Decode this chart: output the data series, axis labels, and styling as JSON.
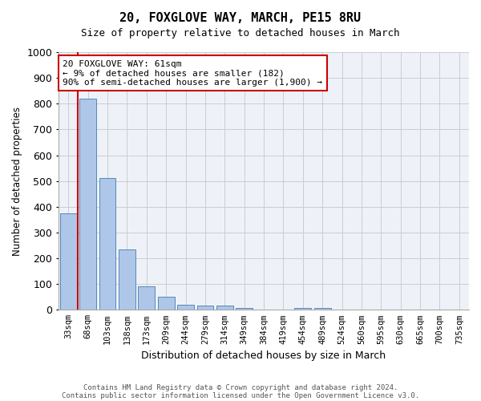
{
  "title1": "20, FOXGLOVE WAY, MARCH, PE15 8RU",
  "title2": "Size of property relative to detached houses in March",
  "xlabel": "Distribution of detached houses by size in March",
  "ylabel": "Number of detached properties",
  "bar_labels": [
    "33sqm",
    "68sqm",
    "103sqm",
    "138sqm",
    "173sqm",
    "209sqm",
    "244sqm",
    "279sqm",
    "314sqm",
    "349sqm",
    "384sqm",
    "419sqm",
    "454sqm",
    "489sqm",
    "524sqm",
    "560sqm",
    "595sqm",
    "630sqm",
    "665sqm",
    "700sqm",
    "735sqm"
  ],
  "bar_values": [
    375,
    820,
    510,
    235,
    90,
    50,
    20,
    15,
    15,
    8,
    0,
    0,
    8,
    8,
    0,
    0,
    0,
    0,
    0,
    0,
    0
  ],
  "bar_color": "#aec6e8",
  "bar_edge_color": "#5588bb",
  "ylim": [
    0,
    1000
  ],
  "yticks": [
    0,
    100,
    200,
    300,
    400,
    500,
    600,
    700,
    800,
    900,
    1000
  ],
  "vline_x": 0.5,
  "vline_color": "#cc0000",
  "annotation_text": "20 FOXGLOVE WAY: 61sqm\n← 9% of detached houses are smaller (182)\n90% of semi-detached houses are larger (1,900) →",
  "annotation_box_color": "#ffffff",
  "annotation_box_edge_color": "#cc0000",
  "footnote1": "Contains HM Land Registry data © Crown copyright and database right 2024.",
  "footnote2": "Contains public sector information licensed under the Open Government Licence v3.0.",
  "plot_bg_color": "#eef2f8"
}
